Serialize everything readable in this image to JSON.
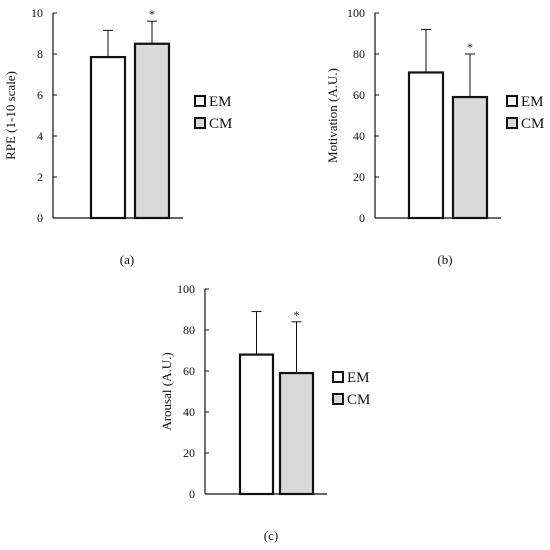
{
  "colors": {
    "EM": "#ffffff",
    "CM": "#d9d9d9",
    "axis": "#111111"
  },
  "chart_data": [
    {
      "type": "bar",
      "panel_label": "(a)",
      "ylabel": "RPE (1-10 scale)",
      "ylim": [
        0,
        10
      ],
      "yticks": [
        "0",
        "2",
        "4",
        "6",
        "8",
        "10"
      ],
      "series": [
        {
          "name": "EM",
          "value": 7.85,
          "error": 1.3,
          "star": ""
        },
        {
          "name": "CM",
          "value": 8.5,
          "error": 1.1,
          "star": "*"
        }
      ],
      "legend": [
        "EM",
        "CM"
      ]
    },
    {
      "type": "bar",
      "panel_label": "(b)",
      "ylabel": "Motivation (A.U.)",
      "ylim": [
        0,
        100
      ],
      "yticks": [
        "0",
        "20",
        "40",
        "60",
        "80",
        "100"
      ],
      "series": [
        {
          "name": "EM",
          "value": 71,
          "error": 21,
          "star": ""
        },
        {
          "name": "CM",
          "value": 59,
          "error": 21,
          "star": "*"
        }
      ],
      "legend": [
        "EM",
        "CM"
      ]
    },
    {
      "type": "bar",
      "panel_label": "(c)",
      "ylabel": "Arousal (A.U.)",
      "ylim": [
        0,
        100
      ],
      "yticks": [
        "0",
        "20",
        "40",
        "60",
        "80",
        "100"
      ],
      "series": [
        {
          "name": "EM",
          "value": 68,
          "error": 21,
          "star": ""
        },
        {
          "name": "CM",
          "value": 59,
          "error": 25,
          "star": "*"
        }
      ],
      "legend": [
        "EM",
        "CM"
      ]
    }
  ]
}
